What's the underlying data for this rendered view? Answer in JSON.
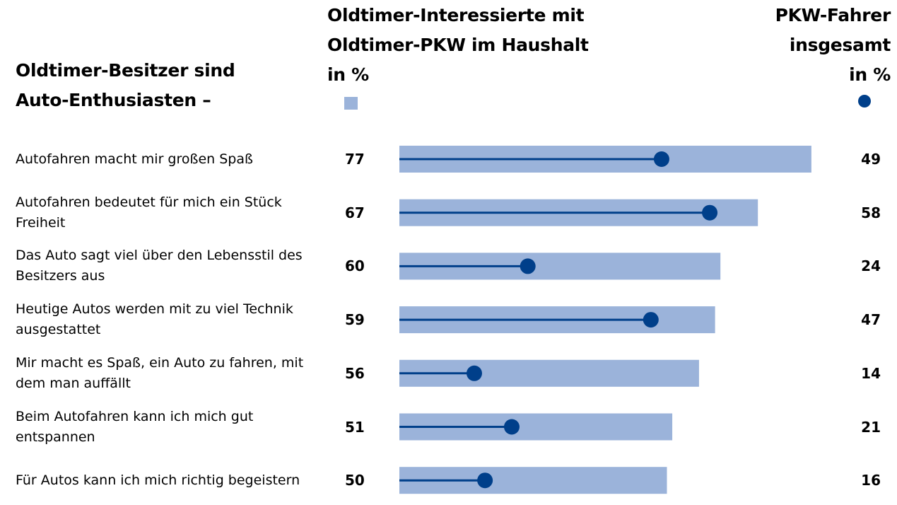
{
  "chart_data": {
    "type": "bar-dot",
    "title": "Oldtimer-Besitzer sind Auto-Enthusiasten –",
    "categories": [
      "Autofahren macht mir großen Spaß",
      "Autofahren bedeutet für mich ein Stück Freiheit",
      "Das Auto sagt viel über den Lebensstil des Besitzers aus",
      "Heutige Autos werden mit zu viel Technik ausgestattet",
      "Mir macht es Spaß, ein Auto zu fahren, mit dem man auffällt",
      "Beim Autofahren kann ich mich gut entspannen",
      "Für Autos kann ich mich richtig begeistern"
    ],
    "series": [
      {
        "name": "Oldtimer-Interessierte mit Oldtimer-PKW im Haushalt in %",
        "color": "#9bb3da",
        "values": [
          77,
          67,
          60,
          59,
          56,
          51,
          50
        ]
      },
      {
        "name": "PKW-Fahrer insgesamt in %",
        "color": "#003f8a",
        "values": [
          49,
          58,
          24,
          47,
          14,
          21,
          16
        ]
      }
    ]
  }
}
